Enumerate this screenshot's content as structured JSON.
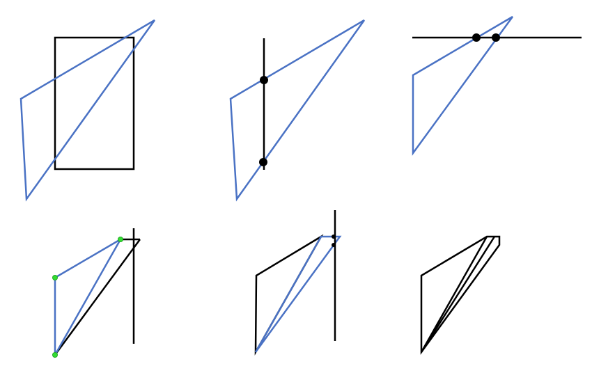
{
  "colors": {
    "background": "#ffffff",
    "clip_edge": "#000000",
    "subject_polygon": "#4a72c4",
    "intersection_point": "#000000",
    "kept_vertex": "#33dd33"
  },
  "panels": [
    {
      "step": "clip-rectangle-with-polygon"
    },
    {
      "step": "clip-against-left-edge"
    },
    {
      "step": "clip-against-top-edge"
    },
    {
      "step": "clip-against-right-edge"
    },
    {
      "step": "clip-against-bottom-edge"
    },
    {
      "step": "clipped-result"
    }
  ]
}
